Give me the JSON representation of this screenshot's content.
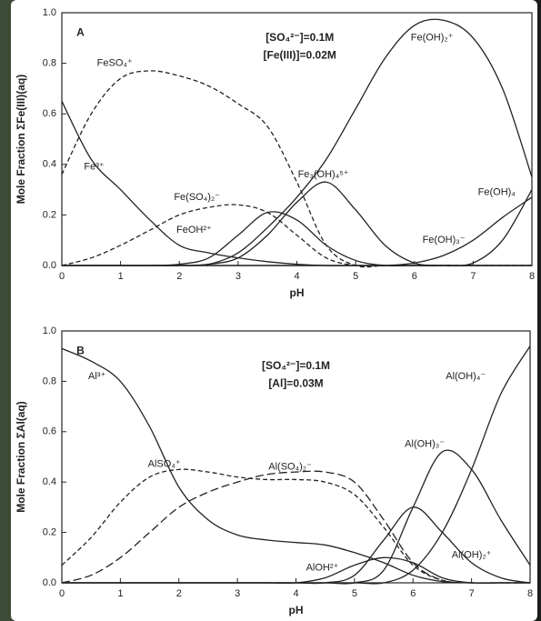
{
  "chart_data": [
    {
      "type": "line",
      "panel_label": "A",
      "annotations": [
        "[SO₄²⁻]=0.1M",
        "[Fe(III)]=0.02M"
      ],
      "x_label": "pH",
      "y_label": "Mole Fraction ΣFe(III)(aq)",
      "xlim": [
        0,
        8
      ],
      "xticks": [
        0,
        1,
        2,
        3,
        4,
        5,
        6,
        7,
        8
      ],
      "ylim": [
        0,
        1
      ],
      "yticks": [
        {
          "value": 0,
          "label": "0.0"
        },
        0.2,
        0.4,
        0.6,
        0.8,
        {
          "value": 1,
          "label": "1.0"
        }
      ],
      "x": [
        0,
        0.5,
        1,
        1.5,
        2,
        2.5,
        3,
        3.5,
        4,
        4.5,
        5,
        5.5,
        6,
        6.5,
        7,
        7.5,
        8
      ],
      "series": [
        {
          "name": "Fe³⁺",
          "color": "#222222",
          "dash": "solid",
          "values": [
            0.65,
            0.42,
            0.3,
            0.18,
            0.08,
            0.05,
            0.03,
            0.015,
            0.005,
            0,
            0,
            0,
            0,
            0,
            0,
            0,
            0
          ]
        },
        {
          "name": "FeSO₄⁺",
          "color": "#222222",
          "dash": "dashed",
          "values": [
            0.36,
            0.6,
            0.74,
            0.77,
            0.75,
            0.71,
            0.64,
            0.55,
            0.33,
            0.08,
            0,
            0,
            0,
            0,
            0,
            0,
            0
          ]
        },
        {
          "name": "Fe(SO₄)₂⁻",
          "color": "#222222",
          "dash": "dashed",
          "values": [
            0,
            0.03,
            0.08,
            0.14,
            0.2,
            0.23,
            0.24,
            0.21,
            0.12,
            0.03,
            0,
            0,
            0,
            0,
            0,
            0,
            0
          ]
        },
        {
          "name": "FeOH²⁺",
          "color": "#222222",
          "dash": "solid",
          "values": [
            0,
            0,
            0,
            0,
            0.005,
            0.03,
            0.12,
            0.21,
            0.18,
            0.08,
            0.02,
            0,
            0,
            0,
            0,
            0,
            0
          ]
        },
        {
          "name": "Fe₃(OH)₄⁵⁺",
          "color": "#222222",
          "dash": "solid",
          "values": [
            0,
            0,
            0,
            0,
            0,
            0.005,
            0.03,
            0.12,
            0.25,
            0.33,
            0.22,
            0.08,
            0.01,
            0,
            0,
            0,
            0
          ]
        },
        {
          "name": "Fe(OH)₂⁺",
          "color": "#222222",
          "dash": "solid",
          "values": [
            0,
            0,
            0,
            0,
            0,
            0.005,
            0.05,
            0.15,
            0.27,
            0.42,
            0.62,
            0.82,
            0.95,
            0.97,
            0.9,
            0.7,
            0.35
          ]
        },
        {
          "name": "Fe(OH)₃⁻",
          "color": "#222222",
          "dash": "solid",
          "values": [
            0,
            0,
            0,
            0,
            0,
            0,
            0,
            0,
            0,
            0,
            0,
            0,
            0.01,
            0.04,
            0.1,
            0.19,
            0.27
          ]
        },
        {
          "name": "Fe(OH)₄",
          "color": "#222222",
          "dash": "solid",
          "values": [
            0,
            0,
            0,
            0,
            0,
            0,
            0,
            0,
            0,
            0,
            0,
            0,
            0,
            0,
            0.01,
            0.1,
            0.3
          ]
        }
      ]
    },
    {
      "type": "line",
      "panel_label": "B",
      "annotations": [
        "[SO₄²⁻]=0.1M",
        "[Al]=0.03M"
      ],
      "x_label": "pH",
      "y_label": "Mole Fraction ΣAl(aq)",
      "xlim": [
        0,
        8
      ],
      "xticks": [
        0,
        1,
        2,
        3,
        4,
        5,
        6,
        7,
        8
      ],
      "ylim": [
        0,
        1
      ],
      "yticks": [
        {
          "value": 0,
          "label": "0.0"
        },
        0.2,
        0.4,
        0.6,
        0.8,
        {
          "value": 1,
          "label": "1.0"
        }
      ],
      "x": [
        0,
        0.5,
        1,
        1.5,
        2,
        2.5,
        3,
        3.5,
        4,
        4.5,
        5,
        5.5,
        6,
        6.5,
        7,
        7.5,
        8
      ],
      "series": [
        {
          "name": "Al³⁺",
          "color": "#222222",
          "dash": "solid",
          "values": [
            0.93,
            0.88,
            0.8,
            0.62,
            0.38,
            0.25,
            0.19,
            0.17,
            0.16,
            0.15,
            0.12,
            0.08,
            0.03,
            0.005,
            0,
            0,
            0
          ]
        },
        {
          "name": "AlSO₄⁺",
          "color": "#222222",
          "dash": "dashed",
          "values": [
            0.07,
            0.18,
            0.32,
            0.42,
            0.45,
            0.44,
            0.42,
            0.41,
            0.41,
            0.4,
            0.35,
            0.22,
            0.07,
            0.01,
            0,
            0,
            0
          ]
        },
        {
          "name": "Al(SO₄)₂⁻",
          "color": "#222222",
          "dash": "longdash",
          "values": [
            0,
            0.03,
            0.1,
            0.2,
            0.3,
            0.36,
            0.4,
            0.43,
            0.44,
            0.44,
            0.4,
            0.25,
            0.08,
            0.01,
            0,
            0,
            0
          ]
        },
        {
          "name": "AlOH²⁺",
          "color": "#222222",
          "dash": "solid",
          "values": [
            0,
            0,
            0,
            0,
            0,
            0,
            0,
            0,
            0,
            0.02,
            0.07,
            0.1,
            0.08,
            0.02,
            0,
            0,
            0
          ]
        },
        {
          "name": "Al(OH)₂⁺",
          "color": "#222222",
          "dash": "solid",
          "values": [
            0,
            0,
            0,
            0,
            0,
            0,
            0,
            0,
            0,
            0,
            0.03,
            0.17,
            0.3,
            0.2,
            0.08,
            0.02,
            0
          ]
        },
        {
          "name": "Al(OH)₃⁻",
          "color": "#222222",
          "dash": "solid",
          "values": [
            0,
            0,
            0,
            0,
            0,
            0,
            0,
            0,
            0,
            0,
            0,
            0.05,
            0.3,
            0.52,
            0.45,
            0.25,
            0.07
          ]
        },
        {
          "name": "Al(OH)₄⁻",
          "color": "#222222",
          "dash": "solid",
          "values": [
            0,
            0,
            0,
            0,
            0,
            0,
            0,
            0,
            0,
            0,
            0,
            0,
            0.05,
            0.2,
            0.45,
            0.75,
            0.94
          ]
        }
      ]
    }
  ]
}
